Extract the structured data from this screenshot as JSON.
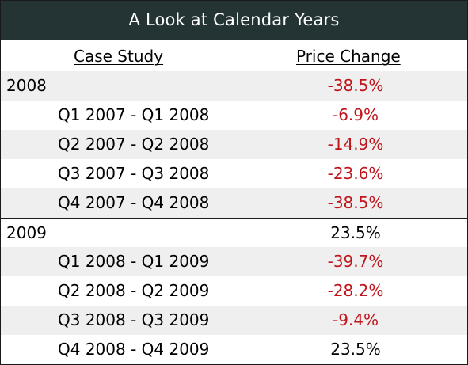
{
  "title": "A Look at Calendar Years",
  "headers": {
    "case_study": "Case Study",
    "price_change": "Price Change"
  },
  "colors": {
    "title_bg": "#243434",
    "negative": "#c0161b",
    "positive": "#000000",
    "row_shade": "#efefef"
  },
  "rows": [
    {
      "label": "2008",
      "value": "-38.5%"
    },
    {
      "label": "Q1 2007 - Q1 2008",
      "value": "-6.9%"
    },
    {
      "label": "Q2 2007 - Q2 2008",
      "value": "-14.9%"
    },
    {
      "label": "Q3 2007 - Q3 2008",
      "value": "-23.6%"
    },
    {
      "label": "Q4 2007 - Q4 2008",
      "value": "-38.5%"
    },
    {
      "label": "2009",
      "value": "23.5%"
    },
    {
      "label": "Q1 2008 - Q1 2009",
      "value": "-39.7%"
    },
    {
      "label": "Q2 2008 - Q2 2009",
      "value": "-28.2%"
    },
    {
      "label": "Q3 2008 - Q3 2009",
      "value": "-9.4%"
    },
    {
      "label": "Q4 2008 - Q4 2009",
      "value": "23.5%"
    }
  ]
}
